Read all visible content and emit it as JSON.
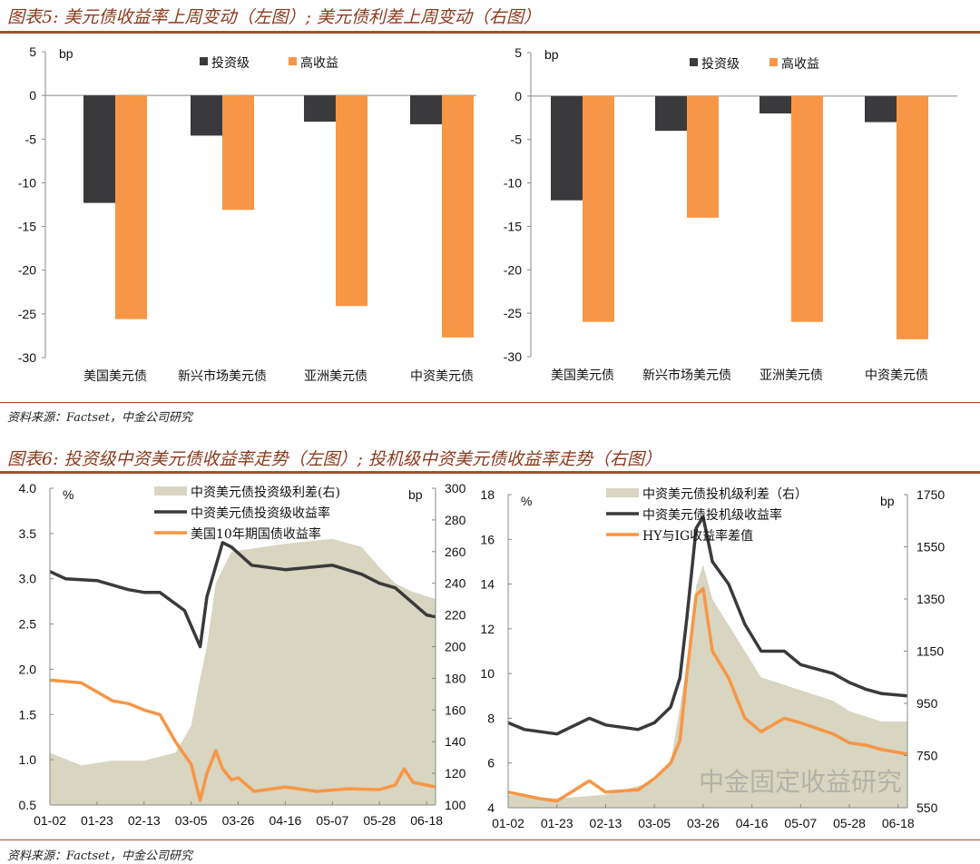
{
  "fig5": {
    "title": "图表5: 美元债收益率上周变动（左图）; 美元债利差上周变动（右图）",
    "source": "资料来源：Factset，中金公司研究"
  },
  "fig6": {
    "title": "图表6: 投资级中资美元债收益率走势（左图）; 投机级中资美元债收益率走势（右图）",
    "source": "资料来源：Factset，中金公司研究"
  },
  "watermark": "中金固定收益研究",
  "colors": {
    "ig": "#3a3a3c",
    "hy": "#f79646",
    "area": "#d8d5c0",
    "title": "#8a3a1c"
  },
  "chart_data": [
    {
      "type": "bar",
      "title": "美元债收益率上周变动",
      "ylabel": "bp",
      "ylim": [
        -30,
        5
      ],
      "yticks": [
        5,
        0,
        -5,
        -10,
        -15,
        -20,
        -25,
        -30
      ],
      "categories": [
        "美国美元债",
        "新兴市场美元债",
        "亚洲美元债",
        "中资美元债"
      ],
      "series": [
        {
          "name": "投资级",
          "values": [
            -12.3,
            -4.6,
            -3.0,
            -3.3
          ]
        },
        {
          "name": "高收益",
          "values": [
            -25.6,
            -13.1,
            -24.1,
            -27.7
          ]
        }
      ],
      "legend": "top"
    },
    {
      "type": "bar",
      "title": "美元债利差上周变动",
      "ylabel": "bp",
      "ylim": [
        -30,
        5
      ],
      "yticks": [
        5,
        0,
        -5,
        -10,
        -15,
        -20,
        -25,
        -30
      ],
      "categories": [
        "美国美元债",
        "新兴市场美元债",
        "亚洲美元债",
        "中资美元债"
      ],
      "series": [
        {
          "name": "投资级",
          "values": [
            -12,
            -4,
            -2,
            -3
          ]
        },
        {
          "name": "高收益",
          "values": [
            -26,
            -14,
            -26,
            -28
          ]
        }
      ],
      "legend": "top"
    },
    {
      "type": "line",
      "title": "投资级中资美元债收益率走势",
      "ylabel": "%",
      "y2label": "bp",
      "ylim": [
        0.5,
        4.0
      ],
      "y2lim": [
        100,
        300
      ],
      "yticks": [
        "4.0",
        "3.5",
        "3.0",
        "2.5",
        "2.0",
        "1.5",
        "1.0",
        "0.5"
      ],
      "y2ticks": [
        "300",
        "280",
        "260",
        "240",
        "220",
        "200",
        "180",
        "160",
        "140",
        "120",
        "100"
      ],
      "xticks": [
        "01-02",
        "01-23",
        "02-13",
        "03-05",
        "03-26",
        "04-16",
        "05-07",
        "05-28",
        "06-18"
      ],
      "xlim": [
        "01-02",
        "06-22"
      ],
      "series": [
        {
          "name": "中资美元债投资级利差(右)",
          "kind": "area",
          "axis": "right",
          "x": [
            "01-02",
            "01-16",
            "01-30",
            "02-13",
            "02-27",
            "03-05",
            "03-09",
            "03-12",
            "03-16",
            "03-23",
            "04-02",
            "04-16",
            "05-07",
            "05-20",
            "05-28",
            "06-04",
            "06-11",
            "06-22"
          ],
          "values": [
            133,
            125,
            128,
            128,
            133,
            150,
            180,
            200,
            240,
            260,
            262,
            265,
            268,
            263,
            250,
            240,
            235,
            230
          ]
        },
        {
          "name": "中资美元债投资级收益率",
          "kind": "line",
          "axis": "left",
          "x": [
            "01-02",
            "01-09",
            "01-23",
            "02-06",
            "02-13",
            "02-20",
            "03-02",
            "03-09",
            "03-12",
            "03-19",
            "03-23",
            "04-01",
            "04-16",
            "05-07",
            "05-20",
            "05-28",
            "06-04",
            "06-11",
            "06-18",
            "06-22"
          ],
          "values": [
            3.08,
            3.0,
            2.98,
            2.88,
            2.85,
            2.85,
            2.65,
            2.25,
            2.8,
            3.4,
            3.35,
            3.15,
            3.1,
            3.15,
            3.05,
            2.95,
            2.9,
            2.75,
            2.6,
            2.58
          ]
        },
        {
          "name": "美国10年期国债收益率",
          "kind": "line",
          "axis": "left",
          "x": [
            "01-02",
            "01-16",
            "01-30",
            "02-06",
            "02-13",
            "02-20",
            "02-27",
            "03-05",
            "03-09",
            "03-12",
            "03-16",
            "03-19",
            "03-23",
            "03-26",
            "04-02",
            "04-16",
            "04-30",
            "05-14",
            "05-28",
            "06-04",
            "06-08",
            "06-12",
            "06-18",
            "06-22"
          ],
          "values": [
            1.88,
            1.85,
            1.65,
            1.62,
            1.55,
            1.5,
            1.2,
            0.95,
            0.55,
            0.85,
            1.1,
            0.9,
            0.78,
            0.8,
            0.65,
            0.7,
            0.65,
            0.68,
            0.67,
            0.72,
            0.9,
            0.75,
            0.72,
            0.7
          ]
        }
      ]
    },
    {
      "type": "line",
      "title": "投机级中资美元债收益率走势",
      "ylabel": "%",
      "y2label": "bp",
      "ylim": [
        4,
        18
      ],
      "y2lim": [
        550,
        1750
      ],
      "yticks": [
        "18",
        "16",
        "14",
        "12",
        "10",
        "8",
        "6",
        "4"
      ],
      "y2ticks": [
        "1750",
        "1550",
        "1350",
        "1150",
        "950",
        "750",
        "550"
      ],
      "xticks": [
        "01-02",
        "01-23",
        "02-13",
        "03-05",
        "03-26",
        "04-16",
        "05-07",
        "05-28",
        "06-18"
      ],
      "xlim": [
        "01-02",
        "06-22"
      ],
      "series": [
        {
          "name": "中资美元债投机级利差（右）",
          "kind": "area",
          "axis": "right",
          "x": [
            "01-02",
            "01-23",
            "02-13",
            "03-05",
            "03-12",
            "03-19",
            "03-23",
            "03-26",
            "03-30",
            "04-06",
            "04-13",
            "04-20",
            "05-07",
            "05-21",
            "05-28",
            "06-11",
            "06-22"
          ],
          "values": [
            600,
            585,
            600,
            650,
            720,
            1100,
            1400,
            1480,
            1350,
            1250,
            1150,
            1050,
            1000,
            960,
            920,
            880,
            880
          ]
        },
        {
          "name": "中资美元债投机级收益率",
          "kind": "line",
          "axis": "left",
          "x": [
            "01-02",
            "01-09",
            "01-23",
            "02-06",
            "02-13",
            "02-27",
            "03-05",
            "03-12",
            "03-16",
            "03-19",
            "03-23",
            "03-26",
            "03-30",
            "04-06",
            "04-13",
            "04-20",
            "04-30",
            "05-07",
            "05-21",
            "05-28",
            "06-04",
            "06-11",
            "06-22"
          ],
          "values": [
            7.8,
            7.5,
            7.3,
            8.0,
            7.7,
            7.5,
            7.8,
            8.5,
            9.8,
            12.5,
            16.5,
            17.0,
            15.0,
            14.0,
            12.2,
            11.0,
            11.0,
            10.4,
            10.0,
            9.6,
            9.3,
            9.1,
            9.0
          ]
        },
        {
          "name": "HY与IG收益率差值",
          "kind": "line",
          "axis": "left",
          "x": [
            "01-02",
            "01-16",
            "01-23",
            "02-06",
            "02-13",
            "02-27",
            "03-05",
            "03-12",
            "03-16",
            "03-19",
            "03-23",
            "03-26",
            "03-30",
            "04-06",
            "04-13",
            "04-20",
            "04-30",
            "05-07",
            "05-21",
            "05-28",
            "06-04",
            "06-11",
            "06-22"
          ],
          "values": [
            4.7,
            4.4,
            4.3,
            5.2,
            4.7,
            4.8,
            5.3,
            6.0,
            7.0,
            10.0,
            13.5,
            13.8,
            11.0,
            9.8,
            8.0,
            7.4,
            8.0,
            7.8,
            7.3,
            6.9,
            6.8,
            6.6,
            6.4
          ]
        }
      ]
    }
  ]
}
